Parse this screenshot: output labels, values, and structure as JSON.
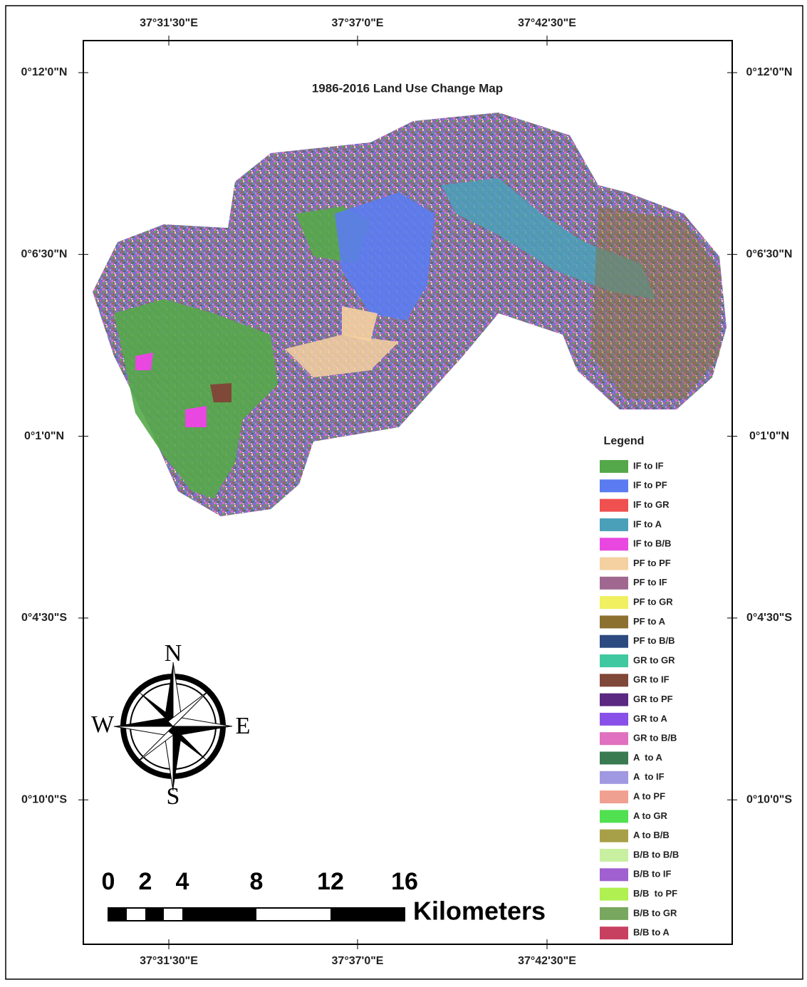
{
  "title": "1986-2016 Land Use Change Map",
  "longitude_labels": [
    "37°31'30\"E",
    "37°37'0\"E",
    "37°42'30\"E"
  ],
  "latitude_labels": [
    "0°12'0\"N",
    "0°6'30\"N",
    "0°1'0\"N",
    "0°4'30\"S",
    "0°10'0\"S"
  ],
  "legend": {
    "title": "Legend",
    "items": [
      {
        "label": "IF to IF",
        "color": "#55a84a"
      },
      {
        "label": "IF to PF",
        "color": "#5b7cf0"
      },
      {
        "label": "IF to GR",
        "color": "#f05050"
      },
      {
        "label": "IF to A",
        "color": "#4aa0b8"
      },
      {
        "label": "IF to B/B",
        "color": "#e848e0"
      },
      {
        "label": "PF to PF",
        "color": "#f5d0a0"
      },
      {
        "label": "PF to IF",
        "color": "#a06890"
      },
      {
        "label": "PF to GR",
        "color": "#f0f060"
      },
      {
        "label": "PF to A",
        "color": "#8c7030"
      },
      {
        "label": "PF to B/B",
        "color": "#2c4a80"
      },
      {
        "label": "GR to GR",
        "color": "#40c8a0"
      },
      {
        "label": "GR to IF",
        "color": "#804838"
      },
      {
        "label": "GR to PF",
        "color": "#5a2880"
      },
      {
        "label": "GR to A",
        "color": "#8850e8"
      },
      {
        "label": "GR to B/B",
        "color": "#e070c0"
      },
      {
        "label": "A  to A",
        "color": "#3a7a50"
      },
      {
        "label": "A  to IF",
        "color": "#a098e0"
      },
      {
        "label": "A to PF",
        "color": "#f0a090"
      },
      {
        "label": "A to GR",
        "color": "#50e050"
      },
      {
        "label": "A to B/B",
        "color": "#a8a048"
      },
      {
        "label": "B/B to B/B",
        "color": "#c8f0a0"
      },
      {
        "label": "B/B to IF",
        "color": "#a060d0"
      },
      {
        "label": "B/B  to PF",
        "color": "#b0f050"
      },
      {
        "label": "B/B to GR",
        "color": "#78a860"
      },
      {
        "label": "B/B to A",
        "color": "#c84060"
      }
    ]
  },
  "scale_bar": {
    "ticks": [
      0,
      2,
      4,
      8,
      12,
      16
    ],
    "unit": "Kilometers"
  },
  "compass": {
    "north": "N",
    "south": "S",
    "east": "E",
    "west": "W"
  }
}
